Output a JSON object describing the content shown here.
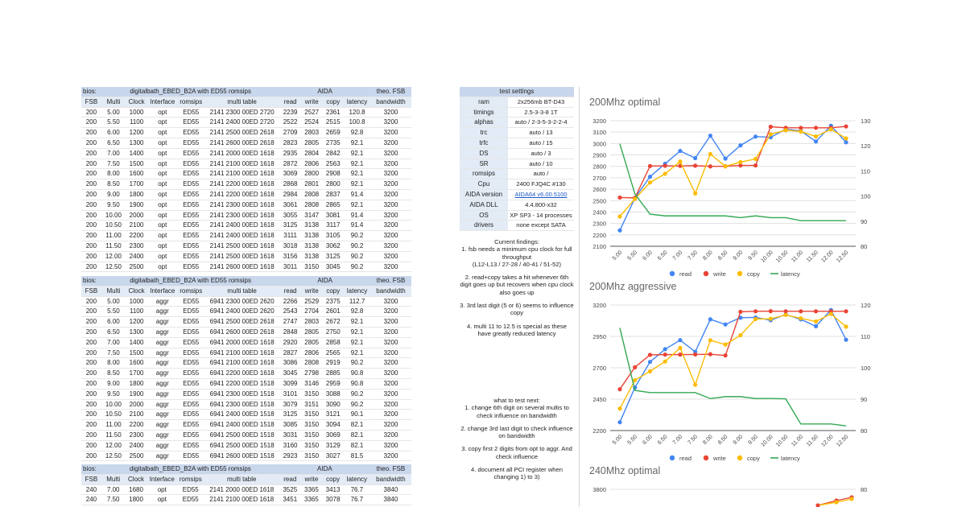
{
  "table1": {
    "header": [
      "bios:",
      "digitalbath_EBED_B2A with ED55 romsips",
      "AIDA",
      "theo. FSB"
    ],
    "columns": [
      "FSB",
      "Multi",
      "Clock",
      "Interface",
      "romsips",
      "multi table",
      "read",
      "write",
      "copy",
      "latency",
      "bandwidth"
    ],
    "rows": [
      [
        "200",
        "5.00",
        "1000",
        "opt",
        "ED55",
        "2141 2300 00ED 2720",
        "2239",
        "2527",
        "2361",
        "120.8",
        "3200"
      ],
      [
        "200",
        "5.50",
        "1100",
        "opt",
        "ED55",
        "2141 2400 00ED 2720",
        "2522",
        "2524",
        "2515",
        "100.8",
        "3200"
      ],
      [
        "200",
        "6.00",
        "1200",
        "opt",
        "ED55",
        "2141 2500 00ED 2618",
        "2709",
        "2803",
        "2659",
        "92.8",
        "3200"
      ],
      [
        "200",
        "6.50",
        "1300",
        "opt",
        "ED55",
        "2141 2600 00ED 2618",
        "2823",
        "2805",
        "2735",
        "92.1",
        "3200"
      ],
      [
        "200",
        "7.00",
        "1400",
        "opt",
        "ED55",
        "2141 2000 00ED 1618",
        "2935",
        "2804",
        "2842",
        "92.1",
        "3200"
      ],
      [
        "200",
        "7.50",
        "1500",
        "opt",
        "ED55",
        "2141 2100 00ED 1618",
        "2872",
        "2806",
        "2563",
        "92.1",
        "3200"
      ],
      [
        "200",
        "8.00",
        "1600",
        "opt",
        "ED55",
        "2141 2100 00ED 1618",
        "3069",
        "2800",
        "2908",
        "92.1",
        "3200"
      ],
      [
        "200",
        "8.50",
        "1700",
        "opt",
        "ED55",
        "2141 2200 00ED 1618",
        "2868",
        "2801",
        "2800",
        "92.1",
        "3200"
      ],
      [
        "200",
        "9.00",
        "1800",
        "opt",
        "ED55",
        "2141 2200 00ED 1618",
        "2984",
        "2808",
        "2837",
        "91.4",
        "3200"
      ],
      [
        "200",
        "9.50",
        "1900",
        "opt",
        "ED55",
        "2141 2300 00ED 1618",
        "3061",
        "2808",
        "2865",
        "92.1",
        "3200"
      ],
      [
        "200",
        "10.00",
        "2000",
        "opt",
        "ED55",
        "2141 2300 00ED 1618",
        "3055",
        "3147",
        "3081",
        "91.4",
        "3200"
      ],
      [
        "200",
        "10.50",
        "2100",
        "opt",
        "ED55",
        "2141 2400 00ED 1618",
        "3125",
        "3138",
        "3117",
        "91.4",
        "3200"
      ],
      [
        "200",
        "11.00",
        "2200",
        "opt",
        "ED55",
        "2141 2400 00ED 1618",
        "3111",
        "3138",
        "3105",
        "90.2",
        "3200"
      ],
      [
        "200",
        "11.50",
        "2300",
        "opt",
        "ED55",
        "2141 2500 00ED 1618",
        "3018",
        "3138",
        "3062",
        "90.2",
        "3200"
      ],
      [
        "200",
        "12.00",
        "2400",
        "opt",
        "ED55",
        "2141 2500 00ED 1618",
        "3156",
        "3138",
        "3125",
        "90.2",
        "3200"
      ],
      [
        "200",
        "12.50",
        "2500",
        "opt",
        "ED55",
        "2141 2600 00ED 1618",
        "3011",
        "3150",
        "3045",
        "90.2",
        "3200"
      ]
    ]
  },
  "table2": {
    "header": [
      "bios:",
      "digitalbath_EBED_B2A with ED55 romsips",
      "AIDA",
      "theo. FSB"
    ],
    "columns": [
      "FSB",
      "Multi",
      "Clock",
      "Interface",
      "romsips",
      "multi table",
      "read",
      "write",
      "copy",
      "latency",
      "bandwidth"
    ],
    "rows": [
      [
        "200",
        "5.00",
        "1000",
        "aggr",
        "ED55",
        "6941 2300 00ED 2620",
        "2266",
        "2529",
        "2375",
        "112.7",
        "3200"
      ],
      [
        "200",
        "5.50",
        "1100",
        "aggr",
        "ED55",
        "6941 2400 00ED 2620",
        "2543",
        "2704",
        "2601",
        "92.8",
        "3200"
      ],
      [
        "200",
        "6.00",
        "1200",
        "aggr",
        "ED55",
        "6941 2500 00ED 2618",
        "2747",
        "2803",
        "2672",
        "92.1",
        "3200"
      ],
      [
        "200",
        "6.50",
        "1300",
        "aggr",
        "ED55",
        "6941 2600 00ED 2618",
        "2848",
        "2805",
        "2750",
        "92.1",
        "3200"
      ],
      [
        "200",
        "7.00",
        "1400",
        "aggr",
        "ED55",
        "6941 2000 00ED 1618",
        "2920",
        "2805",
        "2858",
        "92.1",
        "3200"
      ],
      [
        "200",
        "7.50",
        "1500",
        "aggr",
        "ED55",
        "6941 2100 00ED 1618",
        "2827",
        "2806",
        "2565",
        "92.1",
        "3200"
      ],
      [
        "200",
        "8.00",
        "1600",
        "aggr",
        "ED55",
        "6941 2100 00ED 1618",
        "3086",
        "2808",
        "2919",
        "90.2",
        "3200"
      ],
      [
        "200",
        "8.50",
        "1700",
        "aggr",
        "ED55",
        "6941 2200 00ED 1618",
        "3045",
        "2798",
        "2885",
        "90.8",
        "3200"
      ],
      [
        "200",
        "9.00",
        "1800",
        "aggr",
        "ED55",
        "6941 2200 00ED 1518",
        "3099",
        "3146",
        "2959",
        "90.8",
        "3200"
      ],
      [
        "200",
        "9.50",
        "1900",
        "aggr",
        "ED55",
        "6941 2300 00ED 1518",
        "3101",
        "3150",
        "3088",
        "90.2",
        "3200"
      ],
      [
        "200",
        "10.00",
        "2000",
        "aggr",
        "ED55",
        "6941 2300 00ED 1518",
        "3079",
        "3151",
        "3090",
        "90.2",
        "3200"
      ],
      [
        "200",
        "10.50",
        "2100",
        "aggr",
        "ED55",
        "6941 2400 00ED 1518",
        "3125",
        "3150",
        "3121",
        "90.1",
        "3200"
      ],
      [
        "200",
        "11.00",
        "2200",
        "aggr",
        "ED55",
        "6941 2400 00ED 1518",
        "3085",
        "3150",
        "3094",
        "82.1",
        "3200"
      ],
      [
        "200",
        "11.50",
        "2300",
        "aggr",
        "ED55",
        "6941 2500 00ED 1518",
        "3031",
        "3150",
        "3069",
        "82.1",
        "3200"
      ],
      [
        "200",
        "12.00",
        "2400",
        "aggr",
        "ED55",
        "6941 2500 00ED 1518",
        "3160",
        "3150",
        "3129",
        "82.1",
        "3200"
      ],
      [
        "200",
        "12.50",
        "2500",
        "aggr",
        "ED55",
        "6941 2600 00ED 1518",
        "2923",
        "3150",
        "3027",
        "81.5",
        "3200"
      ]
    ]
  },
  "table3": {
    "header": [
      "bios:",
      "digitalbath_EBED_B2A with ED55 romsips",
      "AIDA",
      "theo. FSB"
    ],
    "columns": [
      "FSB",
      "Multi",
      "Clock",
      "Interface",
      "romsips",
      "multi table",
      "read",
      "write",
      "copy",
      "latency",
      "bandwidth"
    ],
    "rows": [
      [
        "240",
        "7.00",
        "1680",
        "opt",
        "ED55",
        "2141 2000 00ED 1618",
        "3525",
        "3365",
        "3413",
        "76.7",
        "3840"
      ],
      [
        "240",
        "7.50",
        "1800",
        "opt",
        "ED55",
        "2141 2100 00ED 1618",
        "3451",
        "3365",
        "3078",
        "76.7",
        "3840"
      ]
    ]
  },
  "settings": {
    "title": "test settings",
    "rows": [
      [
        "ram",
        "2x256mb BT-D43"
      ],
      [
        "timings",
        "2.5-3-3-8 1T"
      ],
      [
        "alphas",
        "auto / 2-3-5-3-2-2-4"
      ],
      [
        "trc",
        "auto / 13"
      ],
      [
        "trfc",
        "auto / 15"
      ],
      [
        "DS",
        "auto / 3"
      ],
      [
        "SR",
        "auto / 10"
      ],
      [
        "romsips",
        "auto /"
      ],
      [
        "Cpu",
        "2400 FJQ4C #130"
      ],
      [
        "AIDA version",
        "AIDA64 v6.00.5100"
      ],
      [
        "AIDA DLL",
        "4.4.800-x32"
      ],
      [
        "OS",
        "XP SP3 - 14 processes"
      ],
      [
        "drivers",
        "none except SATA"
      ]
    ]
  },
  "findings": [
    "Current findings:",
    "1. fsb needs a minimum cpu clock for full throughput",
    "(L12-L13 / 27-28 / 40-41 / 51-52)",
    "2. read+copy takes a hit whenever 6th digit goes up but recovers when cpu clock also goes up",
    "3. 3rd last digit (5 or 6) seems to influence copy",
    "4. multi 11 to 12.5 is special as these have greatly reduced latency"
  ],
  "todo": [
    "what to test next:",
    "1. change 6th digit on several multis to check influence on bandwidth",
    "2. change 3rd last digit to check influence on bandwidth",
    "3. copy first 2 digits from opt to aggr. And check influence",
    "4. document all PCI register when changing 1) to 3)"
  ],
  "colors": {
    "read": "#4285f4",
    "write": "#ea4335",
    "copy": "#fbbc04",
    "latency": "#34a853"
  },
  "chart_data": [
    {
      "type": "line",
      "title": "200Mhz optimal",
      "categories": [
        "5.00",
        "5.50",
        "6.00",
        "6.50",
        "7.00",
        "7.50",
        "8.00",
        "8.50",
        "9.00",
        "9.50",
        "10.00",
        "10.50",
        "11.00",
        "11.50",
        "12.00",
        "12.50"
      ],
      "yticks": [
        "3200",
        "3100",
        "3000",
        "2900",
        "2800",
        "2700",
        "2600",
        "2500",
        "2400",
        "2300",
        "2200",
        "2100"
      ],
      "y2ticks": [
        "130",
        "120",
        "110",
        "100",
        "90",
        "80"
      ],
      "ylim": [
        2100,
        3200
      ],
      "y2lim": [
        80,
        130
      ],
      "series": [
        {
          "name": "read",
          "axis": "left",
          "values": [
            2239,
            2522,
            2709,
            2823,
            2935,
            2872,
            3069,
            2868,
            2984,
            3061,
            3055,
            3125,
            3111,
            3018,
            3156,
            3011
          ]
        },
        {
          "name": "write",
          "axis": "left",
          "values": [
            2527,
            2524,
            2803,
            2805,
            2804,
            2806,
            2800,
            2801,
            2808,
            2808,
            3147,
            3138,
            3138,
            3138,
            3138,
            3150
          ]
        },
        {
          "name": "copy",
          "axis": "left",
          "values": [
            2361,
            2515,
            2659,
            2735,
            2842,
            2563,
            2908,
            2800,
            2837,
            2865,
            3081,
            3117,
            3105,
            3062,
            3125,
            3045
          ]
        },
        {
          "name": "latency",
          "axis": "right",
          "values": [
            120.8,
            100.8,
            92.8,
            92.1,
            92.1,
            92.1,
            92.1,
            92.1,
            91.4,
            92.1,
            91.4,
            91.4,
            90.2,
            90.2,
            90.2,
            90.2
          ]
        }
      ],
      "legend": "bottom"
    },
    {
      "type": "line",
      "title": "200Mhz aggressive",
      "categories": [
        "5.00",
        "5.50",
        "6.00",
        "6.50",
        "7.00",
        "7.50",
        "8.00",
        "8.50",
        "9.00",
        "9.50",
        "10.00",
        "10.50",
        "11.00",
        "11.50",
        "12.00",
        "12.50"
      ],
      "yticks": [
        "3200",
        "2950",
        "2700",
        "2450",
        "2200"
      ],
      "y2ticks": [
        "120",
        "110",
        "100",
        "90",
        "80"
      ],
      "ylim": [
        2200,
        3200
      ],
      "y2lim": [
        80,
        120
      ],
      "series": [
        {
          "name": "read",
          "axis": "left",
          "values": [
            2266,
            2543,
            2747,
            2848,
            2920,
            2827,
            3086,
            3045,
            3099,
            3101,
            3079,
            3125,
            3085,
            3031,
            3160,
            2923
          ]
        },
        {
          "name": "write",
          "axis": "left",
          "values": [
            2529,
            2704,
            2803,
            2805,
            2805,
            2806,
            2808,
            2798,
            3146,
            3150,
            3151,
            3150,
            3150,
            3150,
            3150,
            3150
          ]
        },
        {
          "name": "copy",
          "axis": "left",
          "values": [
            2375,
            2601,
            2672,
            2750,
            2858,
            2565,
            2919,
            2885,
            2959,
            3088,
            3090,
            3121,
            3094,
            3069,
            3129,
            3027
          ]
        },
        {
          "name": "latency",
          "axis": "right",
          "values": [
            112.7,
            92.8,
            92.1,
            92.1,
            92.1,
            92.1,
            90.2,
            90.8,
            90.8,
            90.2,
            90.2,
            90.1,
            82.1,
            82.1,
            82.1,
            81.5
          ]
        }
      ],
      "legend": "bottom"
    },
    {
      "type": "line",
      "title": "240Mhz optimal",
      "yticks": [
        "3800"
      ],
      "y2ticks": [
        "80"
      ],
      "legend": "bottom"
    }
  ]
}
